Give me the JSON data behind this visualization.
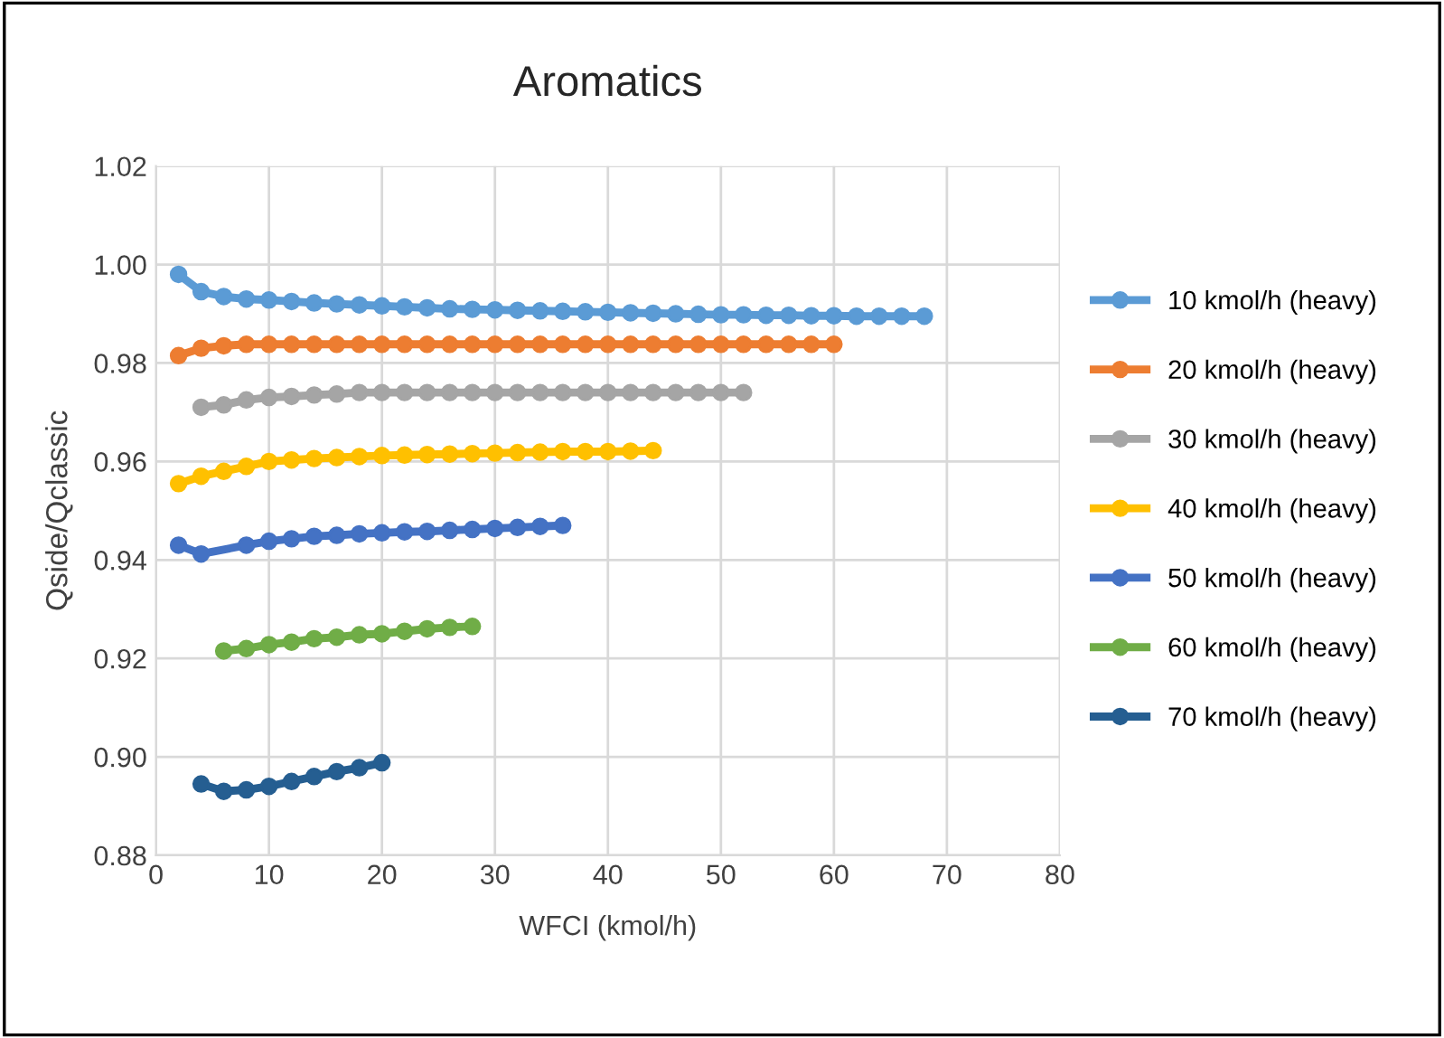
{
  "chart_data": {
    "type": "line",
    "title": "Aromatics",
    "xlabel": "WFCI (kmol/h)",
    "ylabel": "Qside/Qclassic",
    "xlim": [
      0,
      80
    ],
    "xticks": [
      0,
      10,
      20,
      30,
      40,
      50,
      60,
      70,
      80
    ],
    "ylim": [
      0.88,
      1.02
    ],
    "yticks": [
      0.88,
      {
        "value": 0.9,
        "label": "0.90"
      },
      0.92,
      0.94,
      0.96,
      0.98,
      {
        "value": 1.0,
        "label": "1.00"
      },
      1.02
    ],
    "grid": true,
    "legend": "right",
    "marker": "circle",
    "line_style": "solid",
    "series": [
      {
        "name": "10 kmol/h (heavy)",
        "color": "#5b9bd5",
        "x": [
          2,
          4,
          6,
          8,
          10,
          12,
          14,
          16,
          18,
          20,
          22,
          24,
          26,
          28,
          30,
          32,
          34,
          36,
          38,
          40,
          42,
          44,
          46,
          48,
          50,
          52,
          54,
          56,
          58,
          60,
          62,
          64,
          66,
          68
        ],
        "values": [
          0.998,
          0.9945,
          0.9935,
          0.993,
          0.9928,
          0.9925,
          0.9922,
          0.992,
          0.9918,
          0.9916,
          0.9914,
          0.9912,
          0.991,
          0.9909,
          0.9908,
          0.9907,
          0.9906,
          0.9905,
          0.9904,
          0.9903,
          0.9902,
          0.9901,
          0.99,
          0.9899,
          0.9898,
          0.9898,
          0.9897,
          0.9897,
          0.9896,
          0.9896,
          0.9895,
          0.9895,
          0.9895,
          0.9895
        ]
      },
      {
        "name": "20 kmol/h (heavy)",
        "color": "#ed7d31",
        "x": [
          2,
          4,
          6,
          8,
          10,
          12,
          14,
          16,
          18,
          20,
          22,
          24,
          26,
          28,
          30,
          32,
          34,
          36,
          38,
          40,
          42,
          44,
          46,
          48,
          50,
          52,
          54,
          56,
          58,
          60
        ],
        "values": [
          0.9815,
          0.983,
          0.9835,
          0.9838,
          0.9838,
          0.9838,
          0.9838,
          0.9838,
          0.9838,
          0.9838,
          0.9838,
          0.9838,
          0.9838,
          0.9838,
          0.9838,
          0.9838,
          0.9838,
          0.9838,
          0.9838,
          0.9838,
          0.9838,
          0.9838,
          0.9838,
          0.9838,
          0.9838,
          0.9838,
          0.9838,
          0.9838,
          0.9838,
          0.9838
        ]
      },
      {
        "name": "30 kmol/h (heavy)",
        "color": "#a5a5a5",
        "x": [
          4,
          6,
          8,
          10,
          12,
          14,
          16,
          18,
          20,
          22,
          24,
          26,
          28,
          30,
          32,
          34,
          36,
          38,
          40,
          42,
          44,
          46,
          48,
          50,
          52
        ],
        "values": [
          0.971,
          0.9715,
          0.9725,
          0.973,
          0.9732,
          0.9735,
          0.9737,
          0.974,
          0.974,
          0.974,
          0.974,
          0.974,
          0.974,
          0.974,
          0.974,
          0.974,
          0.974,
          0.974,
          0.974,
          0.974,
          0.974,
          0.974,
          0.974,
          0.974,
          0.974
        ]
      },
      {
        "name": "40 kmol/h (heavy)",
        "color": "#ffc000",
        "x": [
          2,
          4,
          6,
          8,
          10,
          12,
          14,
          16,
          18,
          20,
          22,
          24,
          26,
          28,
          30,
          32,
          34,
          36,
          38,
          40,
          42,
          44
        ],
        "values": [
          0.9555,
          0.957,
          0.958,
          0.959,
          0.96,
          0.9603,
          0.9606,
          0.9608,
          0.961,
          0.9612,
          0.9613,
          0.9614,
          0.9615,
          0.9616,
          0.9617,
          0.9618,
          0.9619,
          0.962,
          0.962,
          0.962,
          0.9621,
          0.9622
        ]
      },
      {
        "name": "50 kmol/h (heavy)",
        "color": "#4472c4",
        "x": [
          2,
          4,
          8,
          10,
          12,
          14,
          16,
          18,
          20,
          22,
          24,
          26,
          28,
          30,
          32,
          34,
          36
        ],
        "values": [
          0.943,
          0.9412,
          0.943,
          0.9438,
          0.9443,
          0.9448,
          0.945,
          0.9453,
          0.9455,
          0.9457,
          0.9458,
          0.946,
          0.9462,
          0.9464,
          0.9466,
          0.9468,
          0.947
        ]
      },
      {
        "name": "60 kmol/h (heavy)",
        "color": "#70ad47",
        "x": [
          6,
          8,
          10,
          12,
          14,
          16,
          18,
          20,
          22,
          24,
          26,
          28
        ],
        "values": [
          0.9215,
          0.922,
          0.9228,
          0.9233,
          0.924,
          0.9243,
          0.9248,
          0.925,
          0.9255,
          0.926,
          0.9263,
          0.9265
        ]
      },
      {
        "name": "70 kmol/h (heavy)",
        "color": "#255e91",
        "x": [
          4,
          6,
          8,
          10,
          12,
          14,
          16,
          18,
          20
        ],
        "values": [
          0.8945,
          0.893,
          0.8933,
          0.894,
          0.895,
          0.896,
          0.897,
          0.8978,
          0.8988
        ]
      }
    ]
  }
}
